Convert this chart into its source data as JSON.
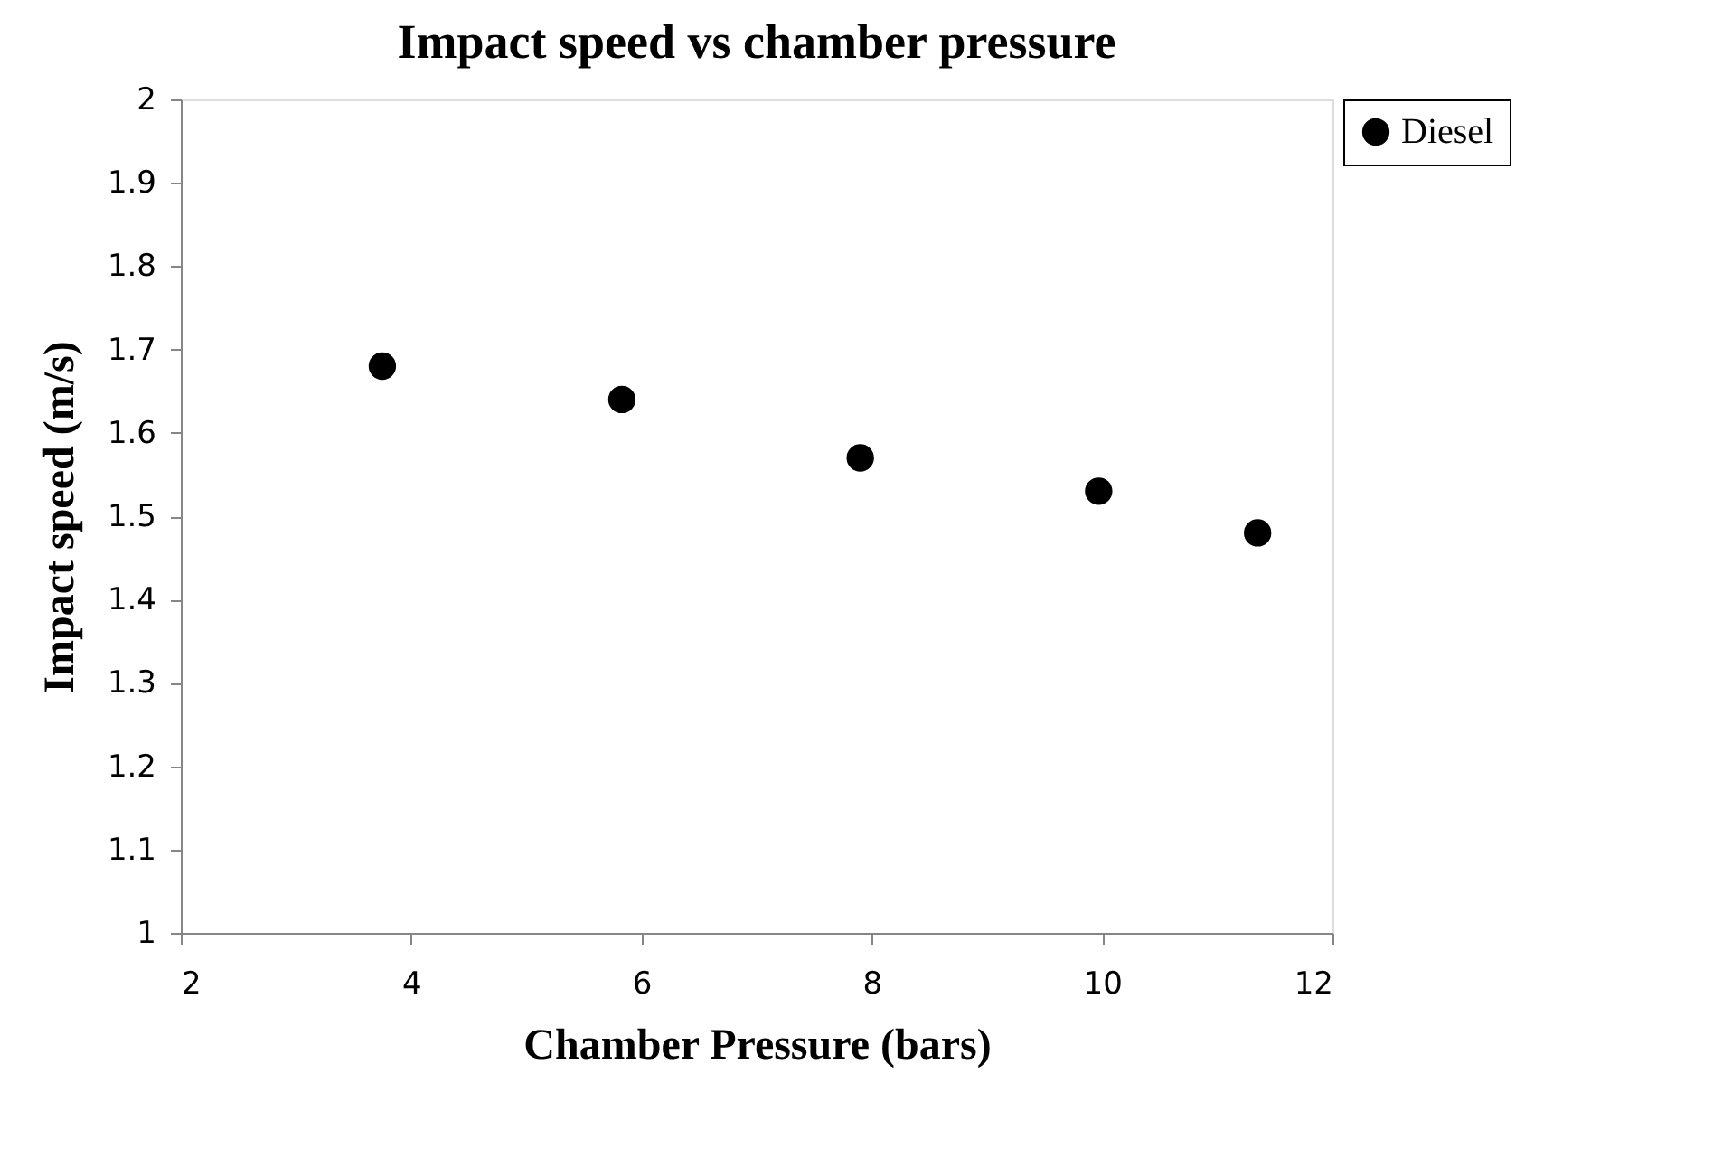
{
  "chart_data": {
    "type": "scatter",
    "title": "Impact speed vs chamber pressure",
    "xlabel": "Chamber Pressure (bars)",
    "ylabel": "Impact speed (m/s)",
    "x": [
      3.75,
      5.83,
      7.9,
      9.97,
      11.35
    ],
    "series": [
      {
        "name": "Diesel",
        "color": "#000000",
        "values": [
          1.68,
          1.64,
          1.57,
          1.53,
          1.48
        ]
      }
    ],
    "xlim": [
      2,
      12
    ],
    "xticks": [
      2,
      4,
      6,
      8,
      10,
      12
    ],
    "ylim": [
      1,
      2
    ],
    "yticks": [
      {
        "value": 1,
        "label": "1"
      },
      1.1,
      1.2,
      1.3,
      1.4,
      1.5,
      1.6,
      1.7,
      1.8,
      1.9,
      {
        "value": 2,
        "label": "2"
      }
    ],
    "grid": false,
    "legend": "right",
    "marker": "circle"
  }
}
